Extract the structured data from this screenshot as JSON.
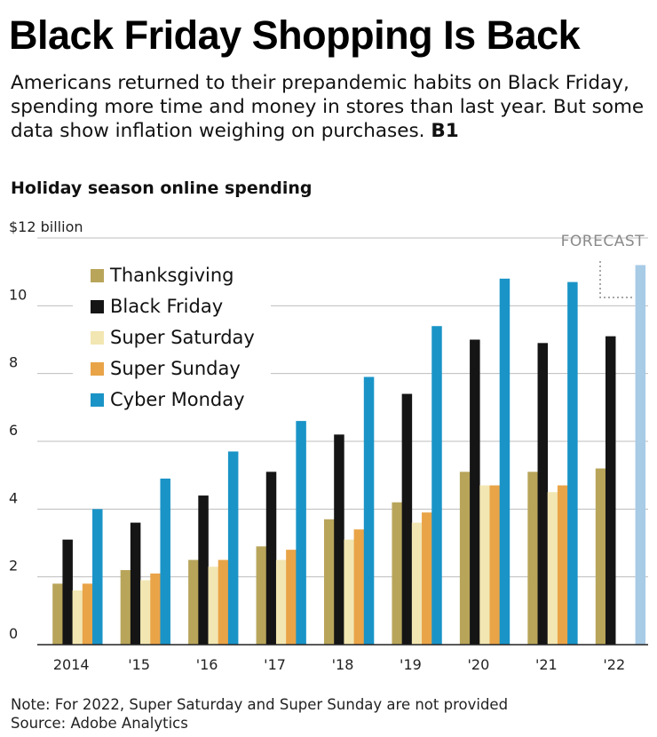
{
  "headline": "Black Friday Shopping Is Back",
  "subtitle": "Americans returned to their prepandemic habits on Black Friday, spending more time and money in stores than last year. But some data show inflation weighing on purchases.",
  "subtitle_ref": "B1",
  "note": "Note: For 2022, Super Saturday and Super Sunday are not provided",
  "source": "Source: Adobe Analytics",
  "chart_data": {
    "type": "bar",
    "title": "Holiday season online spending",
    "ylim": [
      0,
      12
    ],
    "yticks": [
      {
        "value": 0,
        "label": "0"
      },
      {
        "value": 2,
        "label": "2"
      },
      {
        "value": 4,
        "label": "4"
      },
      {
        "value": 6,
        "label": "6"
      },
      {
        "value": 8,
        "label": "8"
      },
      {
        "value": 10,
        "label": "10"
      },
      {
        "value": 12,
        "label": "$12 billion"
      }
    ],
    "grid": true,
    "legend": "top-left",
    "forecast_label": "FORECAST",
    "categories": [
      "2014",
      "'15",
      "'16",
      "'17",
      "'18",
      "'19",
      "'20",
      "'21",
      "'22"
    ],
    "series": [
      {
        "name": "Thanksgiving",
        "color": "#b8a55a",
        "values": [
          1.8,
          2.2,
          2.5,
          2.9,
          3.7,
          4.2,
          5.1,
          5.1,
          5.2
        ]
      },
      {
        "name": "Black Friday",
        "color": "#151515",
        "values": [
          3.1,
          3.6,
          4.4,
          5.1,
          6.2,
          7.4,
          9.0,
          8.9,
          9.1
        ]
      },
      {
        "name": "Super Saturday",
        "color": "#f2e6b2",
        "values": [
          1.6,
          1.9,
          2.3,
          2.5,
          3.1,
          3.6,
          4.7,
          4.5,
          null
        ]
      },
      {
        "name": "Super Sunday",
        "color": "#e9a448",
        "values": [
          1.8,
          2.1,
          2.5,
          2.8,
          3.4,
          3.9,
          4.7,
          4.7,
          null
        ]
      },
      {
        "name": "Cyber Monday",
        "color": "#1a94c7",
        "values": [
          4.0,
          4.9,
          5.7,
          6.6,
          7.9,
          9.4,
          10.8,
          10.7,
          11.2
        ]
      }
    ],
    "forecast_color": "#a8cbe6",
    "forecast_points": [
      {
        "category": "'22",
        "series": "Cyber Monday"
      }
    ]
  }
}
